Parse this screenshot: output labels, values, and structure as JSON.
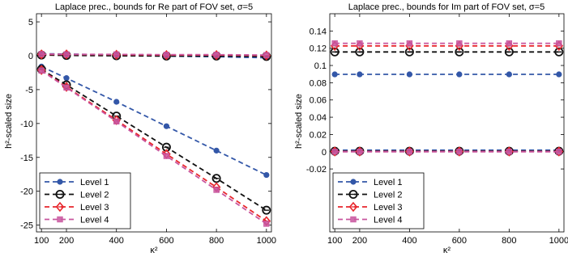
{
  "chart_data": [
    {
      "type": "line",
      "title": "Laplace prec., bounds for Re part of FOV set, σ=5",
      "xlabel": "κ²",
      "ylabel": "h²-scaled size",
      "x": [
        100,
        200,
        400,
        600,
        800,
        1000
      ],
      "xticks": [
        "100",
        "200",
        "400",
        "600",
        "800",
        "1000"
      ],
      "xlim": [
        80,
        1020
      ],
      "ylim": [
        -26,
        6.2
      ],
      "yticks": [
        5,
        0,
        -5,
        -10,
        -15,
        -20,
        -25
      ],
      "ytick_labels": [
        "5",
        "0",
        "-5",
        "-10",
        "-15",
        "-20",
        "-25"
      ],
      "grid": false,
      "legend_position": "bottom-left",
      "series": [
        {
          "name": "Level 1",
          "color": "#3357a8",
          "marker": "dot",
          "lines": [
            [
              0.3,
              0.25,
              0.1,
              -0.05,
              -0.15,
              -0.3
            ],
            [
              -1.6,
              -3.3,
              -6.8,
              -10.4,
              -14.0,
              -17.6
            ]
          ]
        },
        {
          "name": "Level 2",
          "color": "#111111",
          "marker": "circle",
          "lines": [
            [
              0.1,
              0.05,
              0.0,
              -0.05,
              -0.05,
              -0.1
            ],
            [
              -2.0,
              -4.3,
              -8.9,
              -13.5,
              -18.1,
              -22.8
            ]
          ]
        },
        {
          "name": "Level 3",
          "color": "#e8262c",
          "marker": "diamond",
          "lines": [
            [
              0.2,
              0.2,
              0.15,
              0.1,
              0.1,
              0.05
            ],
            [
              -2.1,
              -4.6,
              -9.5,
              -14.5,
              -19.4,
              -24.4
            ]
          ]
        },
        {
          "name": "Level 4",
          "color": "#c8559e",
          "marker": "square",
          "lines": [
            [
              0.25,
              0.2,
              0.2,
              0.15,
              0.15,
              0.1
            ],
            [
              -2.2,
              -4.7,
              -9.7,
              -14.8,
              -19.8,
              -24.8
            ]
          ]
        }
      ]
    },
    {
      "type": "line",
      "title": "Laplace prec., bounds for Im part of FOV set, σ=5",
      "xlabel": "κ²",
      "ylabel": "h²-scaled size",
      "x": [
        100,
        200,
        400,
        600,
        800,
        1000
      ],
      "xticks": [
        "100",
        "200",
        "400",
        "600",
        "800",
        "1000"
      ],
      "xlim": [
        80,
        1020
      ],
      "ylim": [
        -0.093,
        0.16
      ],
      "yticks": [
        0.14,
        0.12,
        0.1,
        0.08,
        0.06,
        0.04,
        0.02,
        0,
        -0.02
      ],
      "ytick_labels": [
        "0.14",
        "0.12",
        "0.1",
        "0.08",
        "0.06",
        "0.04",
        "0.02",
        "0",
        "-0.02"
      ],
      "grid": false,
      "legend_position": "bottom-left",
      "series": [
        {
          "name": "Level 1",
          "color": "#3357a8",
          "marker": "dot",
          "lines": [
            [
              0.0897,
              0.0897,
              0.0897,
              0.0897,
              0.0897,
              0.0897
            ],
            [
              0.0018,
              0.0018,
              0.0018,
              0.0018,
              0.0018,
              0.0018
            ]
          ]
        },
        {
          "name": "Level 2",
          "color": "#111111",
          "marker": "circle",
          "lines": [
            [
              0.1157,
              0.1157,
              0.1157,
              0.1157,
              0.1157,
              0.1157
            ],
            [
              0.0006,
              0.0006,
              0.0006,
              0.0006,
              0.0006,
              0.0006
            ]
          ]
        },
        {
          "name": "Level 3",
          "color": "#e8262c",
          "marker": "diamond",
          "lines": [
            [
              0.1227,
              0.1227,
              0.1227,
              0.1227,
              0.1227,
              0.1227
            ],
            [
              0.0002,
              0.0002,
              0.0002,
              0.0002,
              0.0002,
              0.0002
            ]
          ]
        },
        {
          "name": "Level 4",
          "color": "#c8559e",
          "marker": "square",
          "lines": [
            [
              0.1257,
              0.1257,
              0.1257,
              0.1257,
              0.1257,
              0.1257
            ],
            [
              0.0,
              0.0,
              0.0,
              0.0,
              0.0,
              0.0
            ]
          ]
        }
      ]
    }
  ]
}
